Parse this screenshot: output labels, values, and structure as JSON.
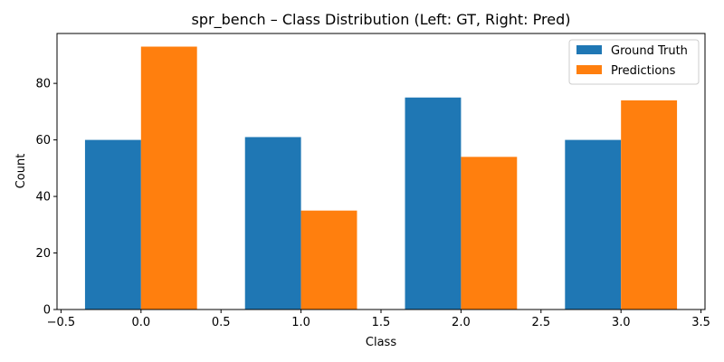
{
  "chart_data": {
    "type": "bar",
    "title": "spr_bench – Class Distribution (Left: GT, Right: Pred)",
    "xlabel": "Class",
    "ylabel": "Count",
    "categories": [
      0,
      1,
      2,
      3
    ],
    "series": [
      {
        "name": "Ground Truth",
        "values": [
          60,
          61,
          75,
          60
        ],
        "color": "#1f77b4"
      },
      {
        "name": "Predictions",
        "values": [
          93,
          35,
          54,
          74
        ],
        "color": "#ff7f0e"
      }
    ],
    "bar_width": 0.35,
    "xlim": [
      -0.525,
      3.525
    ],
    "ylim": [
      0,
      97.65
    ],
    "xticks": [
      -0.5,
      0.0,
      0.5,
      1.0,
      1.5,
      2.0,
      2.5,
      3.0,
      3.5
    ],
    "xtick_labels": [
      "−0.5",
      "0.0",
      "0.5",
      "1.0",
      "1.5",
      "2.0",
      "2.5",
      "3.0",
      "3.5"
    ],
    "yticks": [
      0,
      20,
      40,
      60,
      80
    ],
    "ytick_labels": [
      "0",
      "20",
      "40",
      "60",
      "80"
    ],
    "legend_position": "top-right",
    "grid": false
  }
}
